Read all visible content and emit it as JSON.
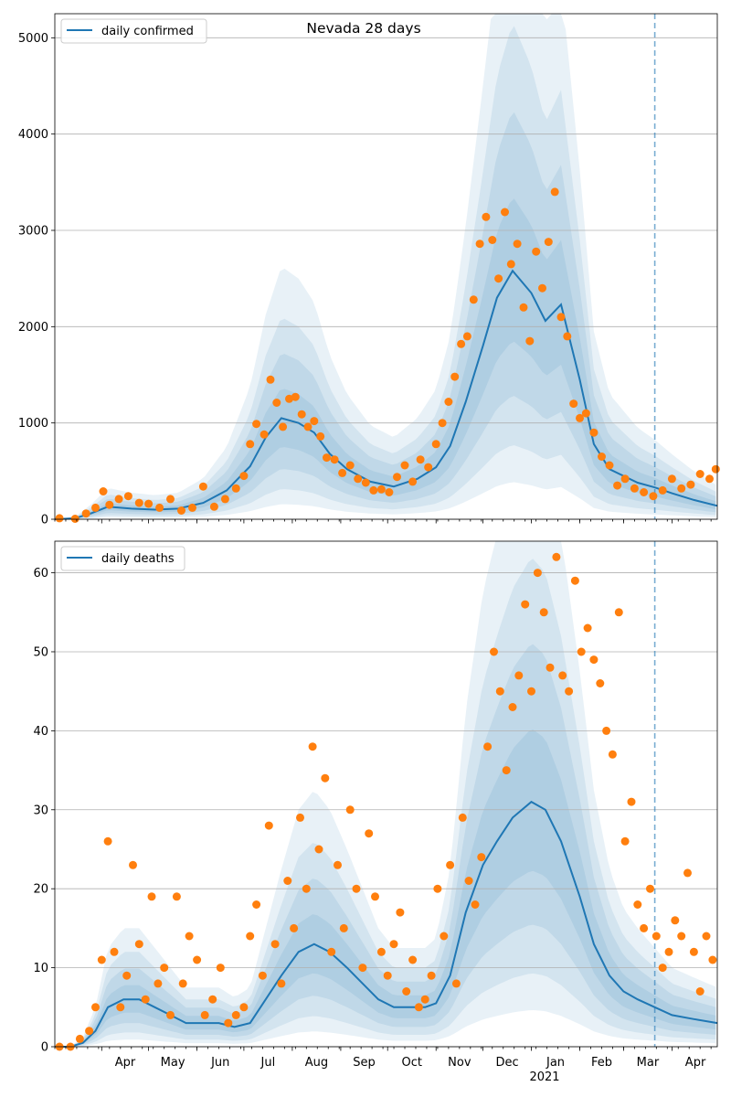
{
  "title": "Nevada 28 days",
  "colors": {
    "line": "#1f77b4",
    "points": "#ff7f0e",
    "band": "#1f77b4",
    "vline": "#1f77b4"
  },
  "x_axis": {
    "months": [
      "Apr",
      "May",
      "Jun",
      "Jul",
      "Aug",
      "Sep",
      "Oct",
      "Nov",
      "Dec",
      "Jan",
      "Feb",
      "Mar",
      "Apr"
    ],
    "year_label": "2021",
    "start": "2020-03-02",
    "end": "2021-04-30",
    "forecast_start": "2021-03-21"
  },
  "chart_data": [
    {
      "type": "line",
      "legend": "daily confirmed",
      "legend_position": "upper left",
      "ylim": [
        0,
        5250
      ],
      "yticks": [
        0,
        1000,
        2000,
        3000,
        4000,
        5000
      ],
      "grid": true,
      "series": [
        {
          "name": "daily confirmed",
          "kind": "line",
          "x": [
            "2020-03-02",
            "2020-03-15",
            "2020-03-25",
            "2020-04-05",
            "2020-04-20",
            "2020-05-05",
            "2020-05-20",
            "2020-06-05",
            "2020-06-20",
            "2020-07-05",
            "2020-07-15",
            "2020-07-25",
            "2020-08-05",
            "2020-08-15",
            "2020-08-25",
            "2020-09-05",
            "2020-09-20",
            "2020-10-05",
            "2020-10-20",
            "2020-11-01",
            "2020-11-10",
            "2020-11-20",
            "2020-12-01",
            "2020-12-10",
            "2020-12-20",
            "2021-01-01",
            "2021-01-10",
            "2021-01-20",
            "2021-02-01",
            "2021-02-10",
            "2021-02-20",
            "2021-03-01",
            "2021-03-10",
            "2021-03-21",
            "2021-04-01",
            "2021-04-15",
            "2021-04-30"
          ],
          "y": [
            0,
            10,
            60,
            130,
            110,
            100,
            110,
            170,
            300,
            550,
            850,
            1050,
            1000,
            900,
            680,
            520,
            390,
            340,
            420,
            540,
            760,
            1220,
            1800,
            2300,
            2580,
            2350,
            2060,
            2230,
            1450,
            780,
            520,
            450,
            380,
            330,
            270,
            200,
            140
          ]
        },
        {
          "name": "daily confirmed (observed)",
          "kind": "points",
          "x": [
            "2020-03-05",
            "2020-03-15",
            "2020-03-22",
            "2020-03-28",
            "2020-04-02",
            "2020-04-06",
            "2020-04-12",
            "2020-04-18",
            "2020-04-25",
            "2020-05-01",
            "2020-05-08",
            "2020-05-15",
            "2020-05-22",
            "2020-05-29",
            "2020-06-05",
            "2020-06-12",
            "2020-06-19",
            "2020-06-26",
            "2020-07-01",
            "2020-07-05",
            "2020-07-09",
            "2020-07-14",
            "2020-07-18",
            "2020-07-22",
            "2020-07-26",
            "2020-07-30",
            "2020-08-03",
            "2020-08-07",
            "2020-08-11",
            "2020-08-15",
            "2020-08-19",
            "2020-08-23",
            "2020-08-28",
            "2020-09-02",
            "2020-09-07",
            "2020-09-12",
            "2020-09-17",
            "2020-09-22",
            "2020-09-27",
            "2020-10-02",
            "2020-10-07",
            "2020-10-12",
            "2020-10-17",
            "2020-10-22",
            "2020-10-27",
            "2020-11-01",
            "2020-11-05",
            "2020-11-09",
            "2020-11-13",
            "2020-11-17",
            "2020-11-21",
            "2020-11-25",
            "2020-11-29",
            "2020-12-03",
            "2020-12-07",
            "2020-12-11",
            "2020-12-15",
            "2020-12-19",
            "2020-12-23",
            "2020-12-27",
            "2020-12-31",
            "2021-01-04",
            "2021-01-08",
            "2021-01-12",
            "2021-01-16",
            "2021-01-20",
            "2021-01-24",
            "2021-01-28",
            "2021-02-01",
            "2021-02-05",
            "2021-02-10",
            "2021-02-15",
            "2021-02-20",
            "2021-02-25",
            "2021-03-02",
            "2021-03-08",
            "2021-03-14",
            "2021-03-20",
            "2021-03-26",
            "2021-04-01",
            "2021-04-07",
            "2021-04-13",
            "2021-04-19",
            "2021-04-25",
            "2021-04-29"
          ],
          "y": [
            10,
            5,
            60,
            120,
            290,
            150,
            210,
            240,
            170,
            160,
            120,
            210,
            90,
            120,
            340,
            130,
            210,
            320,
            450,
            780,
            990,
            880,
            1450,
            1210,
            960,
            1250,
            1270,
            1090,
            960,
            1020,
            860,
            640,
            620,
            480,
            560,
            420,
            380,
            300,
            310,
            280,
            440,
            560,
            390,
            620,
            540,
            780,
            1000,
            1220,
            1480,
            1820,
            1900,
            2280,
            2860,
            3140,
            2900,
            2500,
            3190,
            2650,
            2860,
            2200,
            1850,
            2780,
            2400,
            2880,
            3400,
            2100,
            1900,
            1200,
            1050,
            1100,
            900,
            650,
            560,
            350,
            420,
            320,
            280,
            240,
            300,
            420,
            320,
            360,
            470,
            420,
            520
          ]
        }
      ]
    },
    {
      "type": "line",
      "legend": "daily deaths",
      "legend_position": "upper left",
      "ylim": [
        0,
        64
      ],
      "yticks": [
        0,
        10,
        20,
        30,
        40,
        50,
        60
      ],
      "grid": true,
      "series": [
        {
          "name": "daily deaths",
          "kind": "line",
          "x": [
            "2020-03-02",
            "2020-03-12",
            "2020-03-20",
            "2020-03-28",
            "2020-04-05",
            "2020-04-15",
            "2020-04-25",
            "2020-05-05",
            "2020-05-15",
            "2020-05-25",
            "2020-06-05",
            "2020-06-15",
            "2020-06-25",
            "2020-07-05",
            "2020-07-15",
            "2020-07-25",
            "2020-08-05",
            "2020-08-15",
            "2020-08-25",
            "2020-09-05",
            "2020-09-15",
            "2020-09-25",
            "2020-10-05",
            "2020-10-15",
            "2020-10-25",
            "2020-11-01",
            "2020-11-10",
            "2020-11-20",
            "2020-12-01",
            "2020-12-10",
            "2020-12-20",
            "2021-01-01",
            "2021-01-10",
            "2021-01-20",
            "2021-02-01",
            "2021-02-10",
            "2021-02-20",
            "2021-03-01",
            "2021-03-10",
            "2021-03-21",
            "2021-04-01",
            "2021-04-15",
            "2021-04-30"
          ],
          "y": [
            0,
            0,
            0.5,
            2,
            5,
            6,
            6,
            5,
            4,
            3,
            3,
            3,
            2.5,
            3,
            6,
            9,
            12,
            13,
            12,
            10,
            8,
            6,
            5,
            5,
            5,
            5.5,
            9,
            17,
            23,
            26,
            29,
            31,
            30,
            26,
            19,
            13,
            9,
            7,
            6,
            5,
            4,
            3.5,
            3
          ]
        },
        {
          "name": "daily deaths (observed)",
          "kind": "points",
          "x": [
            "2020-03-05",
            "2020-03-12",
            "2020-03-18",
            "2020-03-24",
            "2020-03-28",
            "2020-04-01",
            "2020-04-05",
            "2020-04-09",
            "2020-04-13",
            "2020-04-17",
            "2020-04-21",
            "2020-04-25",
            "2020-04-29",
            "2020-05-03",
            "2020-05-07",
            "2020-05-11",
            "2020-05-15",
            "2020-05-19",
            "2020-05-23",
            "2020-05-27",
            "2020-06-01",
            "2020-06-06",
            "2020-06-11",
            "2020-06-16",
            "2020-06-21",
            "2020-06-26",
            "2020-07-01",
            "2020-07-05",
            "2020-07-09",
            "2020-07-13",
            "2020-07-17",
            "2020-07-21",
            "2020-07-25",
            "2020-07-29",
            "2020-08-02",
            "2020-08-06",
            "2020-08-10",
            "2020-08-14",
            "2020-08-18",
            "2020-08-22",
            "2020-08-26",
            "2020-08-30",
            "2020-09-03",
            "2020-09-07",
            "2020-09-11",
            "2020-09-15",
            "2020-09-19",
            "2020-09-23",
            "2020-09-27",
            "2020-10-01",
            "2020-10-05",
            "2020-10-09",
            "2020-10-13",
            "2020-10-17",
            "2020-10-21",
            "2020-10-25",
            "2020-10-29",
            "2020-11-02",
            "2020-11-06",
            "2020-11-10",
            "2020-11-14",
            "2020-11-18",
            "2020-11-22",
            "2020-11-26",
            "2020-11-30",
            "2020-12-04",
            "2020-12-08",
            "2020-12-12",
            "2020-12-16",
            "2020-12-20",
            "2020-12-24",
            "2020-12-28",
            "2021-01-01",
            "2021-01-05",
            "2021-01-09",
            "2021-01-13",
            "2021-01-17",
            "2021-01-21",
            "2021-01-25",
            "2021-01-29",
            "2021-02-02",
            "2021-02-06",
            "2021-02-10",
            "2021-02-14",
            "2021-02-18",
            "2021-02-22",
            "2021-02-26",
            "2021-03-02",
            "2021-03-06",
            "2021-03-10",
            "2021-03-14",
            "2021-03-18",
            "2021-03-22",
            "2021-03-26",
            "2021-03-30",
            "2021-04-03",
            "2021-04-07",
            "2021-04-11",
            "2021-04-15",
            "2021-04-19",
            "2021-04-23",
            "2021-04-27"
          ],
          "y": [
            0,
            0,
            1,
            2,
            5,
            11,
            26,
            12,
            5,
            9,
            23,
            13,
            6,
            19,
            8,
            10,
            4,
            19,
            8,
            14,
            11,
            4,
            6,
            10,
            3,
            4,
            5,
            14,
            18,
            9,
            28,
            13,
            8,
            21,
            15,
            29,
            20,
            38,
            25,
            34,
            12,
            23,
            15,
            30,
            20,
            10,
            27,
            19,
            12,
            9,
            13,
            17,
            7,
            11,
            5,
            6,
            9,
            20,
            14,
            23,
            8,
            29,
            21,
            18,
            24,
            38,
            50,
            45,
            35,
            43,
            47,
            56,
            45,
            60,
            55,
            48,
            62,
            47,
            45,
            59,
            50,
            53,
            49,
            46,
            40,
            37,
            55,
            26,
            31,
            18,
            15,
            20,
            14,
            10,
            12,
            16,
            14,
            22,
            12,
            7,
            14,
            11
          ]
        }
      ]
    }
  ]
}
